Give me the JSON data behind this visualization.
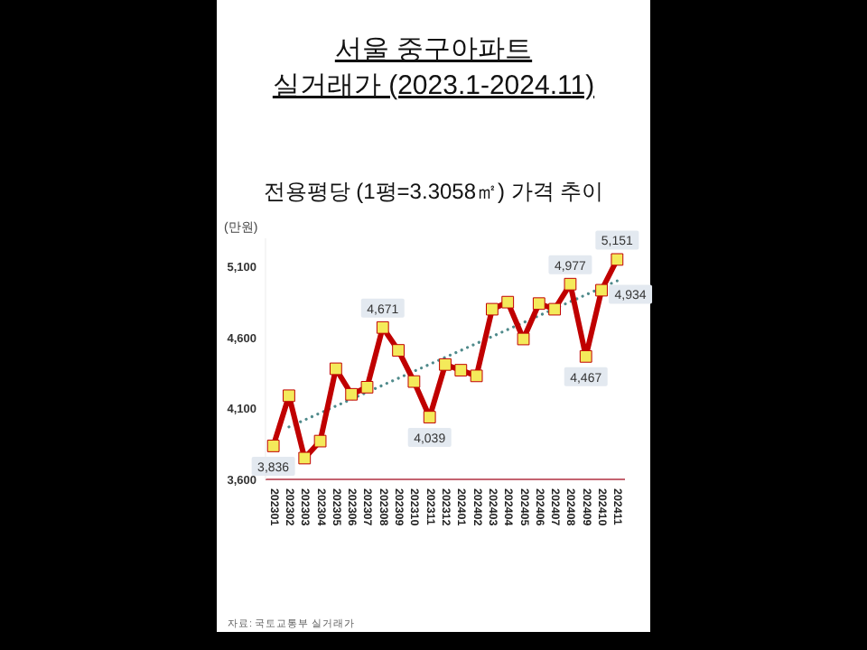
{
  "chart_data": {
    "type": "line",
    "title": "서울 중구아파트\n실거래가 (2023.1-2024.11)",
    "subtitle": "전용평당 (1평=3.3058㎡) 가격 추이",
    "ylabel": "(만원)",
    "categories": [
      "202301",
      "202302",
      "202303",
      "202304",
      "202305",
      "202306",
      "202307",
      "202308",
      "202309",
      "202310",
      "202311",
      "202312",
      "202401",
      "202402",
      "202403",
      "202404",
      "202405",
      "202406",
      "202407",
      "202408",
      "202409",
      "202410",
      "202411"
    ],
    "series": [
      {
        "type": "line",
        "color": "#4f8a8b",
        "marker": "none",
        "line_style": "dotted",
        "x": [
          "202302",
          "202411"
        ],
        "values": [
          3970,
          5000
        ]
      },
      {
        "color": "#c00000",
        "marker": "square",
        "line_style": "solid",
        "values": [
          3836,
          4190,
          3750,
          3870,
          4380,
          4200,
          4250,
          4671,
          4510,
          4290,
          4039,
          4410,
          4370,
          4330,
          4800,
          4850,
          4590,
          4840,
          4800,
          4977,
          4467,
          4934,
          5151
        ],
        "value_labels": [
          "3,836",
          null,
          null,
          null,
          null,
          null,
          null,
          "4,671",
          null,
          null,
          "4,039",
          null,
          null,
          null,
          null,
          null,
          null,
          null,
          null,
          "4,977",
          "4,467",
          "4,934",
          "5,151"
        ]
      }
    ],
    "ylim": [
      3600,
      5300
    ],
    "yticks": [
      {
        "value": 3600,
        "label": "3,600"
      },
      {
        "value": 4100,
        "label": "4,100"
      },
      {
        "value": 4600,
        "label": "4,600"
      },
      {
        "value": 5100,
        "label": "5,100"
      }
    ],
    "grid": false,
    "annotations": [
      "자료: 국토교통부 실거래가"
    ]
  }
}
